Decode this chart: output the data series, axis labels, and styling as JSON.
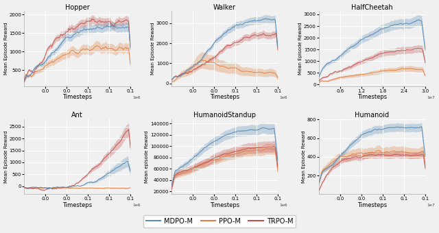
{
  "titles": [
    "Hopper",
    "Walker",
    "HalfCheetah",
    "Ant",
    "HumanoidStandup",
    "Humanoid"
  ],
  "colors": {
    "MDPO-M": "#5b8db8",
    "PPO-M": "#e08040",
    "TRPO-M": "#c0504d"
  },
  "fill_alpha": 0.3,
  "line_alpha": 0.95,
  "legend_labels": [
    "MDPO-M",
    "PPO-M",
    "TRPO-M"
  ],
  "bg_color": "#f0f0f0",
  "grid_color": "white",
  "fig_bg": "#f0f0f0",
  "subplot_configs": [
    {
      "xmax": 1000000.0,
      "xexp": 6,
      "ylabel": "Mean Episode Reward"
    },
    {
      "xmax": 1000000.0,
      "xexp": 6,
      "ylabel": "Mean Episode Reward"
    },
    {
      "xmax": 30000000.0,
      "xexp": 7,
      "ylabel": "Mean Episode Reward"
    },
    {
      "xmax": 1000000.0,
      "xexp": 6,
      "ylabel": "Mean Episode Reward"
    },
    {
      "xmax": 1000000.0,
      "xexp": 6,
      "ylabel": "Mean episode Reward"
    },
    {
      "xmax": 1000000.0,
      "xexp": 7,
      "ylabel": "Mean Episode Reward"
    }
  ]
}
